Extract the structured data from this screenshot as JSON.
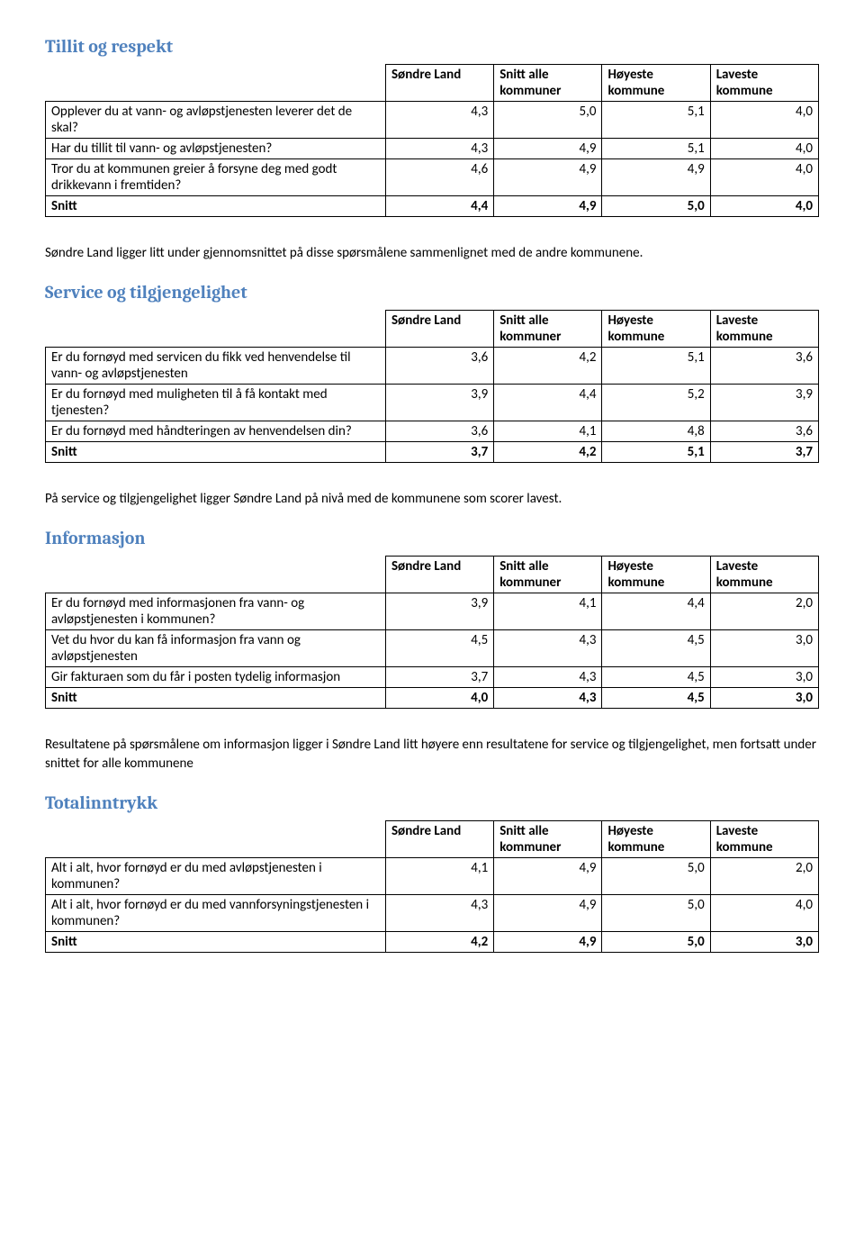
{
  "styling": {
    "heading_color": "#4f81bd",
    "heading_font": "Cambria",
    "heading_fontsize_pt": 15,
    "body_font": "Calibri",
    "body_fontsize_pt": 11,
    "border_color": "#000000",
    "text_color": "#000000",
    "background_color": "#ffffff",
    "column_widths_pct": [
      44,
      14,
      14,
      14,
      14
    ]
  },
  "column_headers": {
    "c1": "Søndre Land",
    "c2": "Snitt alle kommuner",
    "c3": "Høyeste kommune",
    "c4": "Laveste kommune"
  },
  "sections": {
    "tillit": {
      "title": "Tillit og respekt",
      "rows": [
        {
          "label": "Opplever du at vann- og avløpstjenesten leverer det de skal?",
          "v": [
            "4,3",
            "5,0",
            "5,1",
            "4,0"
          ]
        },
        {
          "label": "Har du tillit til vann- og avløpstjenesten?",
          "v": [
            "4,3",
            "4,9",
            "5,1",
            "4,0"
          ]
        },
        {
          "label": "Tror du at kommunen greier å forsyne deg med godt drikkevann i fremtiden?",
          "v": [
            "4,6",
            "4,9",
            "4,9",
            "4,0"
          ]
        }
      ],
      "snitt": {
        "label": "Snitt",
        "v": [
          "4,4",
          "4,9",
          "5,0",
          "4,0"
        ]
      },
      "body": "Søndre Land ligger litt under gjennomsnittet på disse spørsmålene sammenlignet med de andre kommunene."
    },
    "service": {
      "title": "Service og tilgjengelighet",
      "rows": [
        {
          "label": "Er du fornøyd med servicen du fikk ved henvendelse til vann- og avløpstjenesten",
          "v": [
            "3,6",
            "4,2",
            "5,1",
            "3,6"
          ]
        },
        {
          "label": "Er du fornøyd med muligheten til å få kontakt med tjenesten?",
          "v": [
            "3,9",
            "4,4",
            "5,2",
            "3,9"
          ]
        },
        {
          "label": "Er du fornøyd med håndteringen av henvendelsen din?",
          "v": [
            "3,6",
            "4,1",
            "4,8",
            "3,6"
          ]
        }
      ],
      "snitt": {
        "label": "Snitt",
        "v": [
          "3,7",
          "4,2",
          "5,1",
          "3,7"
        ]
      },
      "body": "På service og tilgjengelighet ligger Søndre Land på nivå med de kommunene som scorer lavest."
    },
    "informasjon": {
      "title": "Informasjon",
      "rows": [
        {
          "label": "Er du fornøyd med informasjonen fra vann- og avløpstjenesten i kommunen?",
          "v": [
            "3,9",
            "4,1",
            "4,4",
            "2,0"
          ]
        },
        {
          "label": "Vet du hvor du kan få informasjon fra vann og avløpstjenesten",
          "v": [
            "4,5",
            "4,3",
            "4,5",
            "3,0"
          ]
        },
        {
          "label": "Gir fakturaen som du får i posten tydelig informasjon",
          "v": [
            "3,7",
            "4,3",
            "4,5",
            "3,0"
          ]
        }
      ],
      "snitt": {
        "label": "Snitt",
        "v": [
          "4,0",
          "4,3",
          "4,5",
          "3,0"
        ]
      },
      "body": "Resultatene på spørsmålene om informasjon ligger i Søndre Land litt høyere enn resultatene for service og tilgjengelighet, men fortsatt under snittet for alle kommunene"
    },
    "totalinntrykk": {
      "title": "Totalinntrykk",
      "rows": [
        {
          "label": "Alt i alt, hvor fornøyd er du med avløpstjenesten i kommunen?",
          "v": [
            "4,1",
            "4,9",
            "5,0",
            "2,0"
          ]
        },
        {
          "label": "Alt i alt, hvor fornøyd er du med vannforsyningstjenesten i kommunen?",
          "v": [
            "4,3",
            "4,9",
            "5,0",
            "4,0"
          ]
        }
      ],
      "snitt": {
        "label": "Snitt",
        "v": [
          "4,2",
          "4,9",
          "5,0",
          "3,0"
        ]
      }
    }
  }
}
